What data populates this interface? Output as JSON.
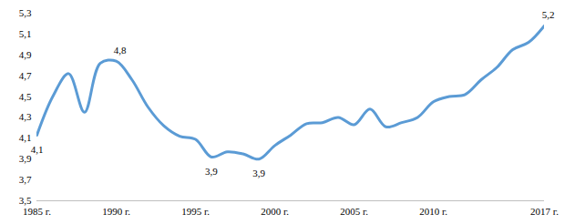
{
  "chart_data": {
    "type": "line",
    "x": [
      1985,
      1986,
      1987,
      1988,
      1989,
      1990,
      1991,
      1992,
      1993,
      1994,
      1995,
      1996,
      1997,
      1998,
      1999,
      2000,
      2001,
      2002,
      2003,
      2004,
      2005,
      2006,
      2007,
      2008,
      2009,
      2010,
      2011,
      2012,
      2013,
      2014,
      2015,
      2016,
      2017
    ],
    "values": [
      4.13,
      4.5,
      4.72,
      4.35,
      4.82,
      4.84,
      4.66,
      4.4,
      4.22,
      4.12,
      4.09,
      3.92,
      3.97,
      3.95,
      3.9,
      4.03,
      4.13,
      4.24,
      4.25,
      4.3,
      4.23,
      4.38,
      4.21,
      4.25,
      4.3,
      4.45,
      4.5,
      4.52,
      4.66,
      4.78,
      4.95,
      5.02,
      5.18
    ],
    "color": "#5b9bd5",
    "xlim": [
      1985,
      2017
    ],
    "xticks": [
      {
        "value": 1985,
        "label": "1985 г."
      },
      {
        "value": 1990,
        "label": "1990 г."
      },
      {
        "value": 1995,
        "label": "1995 г."
      },
      {
        "value": 2000,
        "label": "2000 г."
      },
      {
        "value": 2005,
        "label": "2005 г."
      },
      {
        "value": 2010,
        "label": "2010 г."
      },
      {
        "value": 2017,
        "label": "2017 г."
      }
    ],
    "ylim": [
      3.5,
      5.3
    ],
    "yticks": [
      {
        "value": 3.5,
        "label": "3,5"
      },
      {
        "value": 3.7,
        "label": "3,7"
      },
      {
        "value": 3.9,
        "label": "3,9"
      },
      {
        "value": 4.1,
        "label": "4,1"
      },
      {
        "value": 4.3,
        "label": "4,3"
      },
      {
        "value": 4.5,
        "label": "4,5"
      },
      {
        "value": 4.7,
        "label": "4,7"
      },
      {
        "value": 4.9,
        "label": "4,9"
      },
      {
        "value": 5.1,
        "label": "5,1"
      },
      {
        "value": 5.3,
        "label": "5,3"
      }
    ],
    "grid": false,
    "annotations": [
      {
        "x": 1985,
        "text": "4,1"
      },
      {
        "x": 1990,
        "text": "4,8"
      },
      {
        "x": 1996,
        "text": "3,9"
      },
      {
        "x": 1999,
        "text": "3,9"
      },
      {
        "x": 2017,
        "text": "5,2"
      }
    ]
  }
}
